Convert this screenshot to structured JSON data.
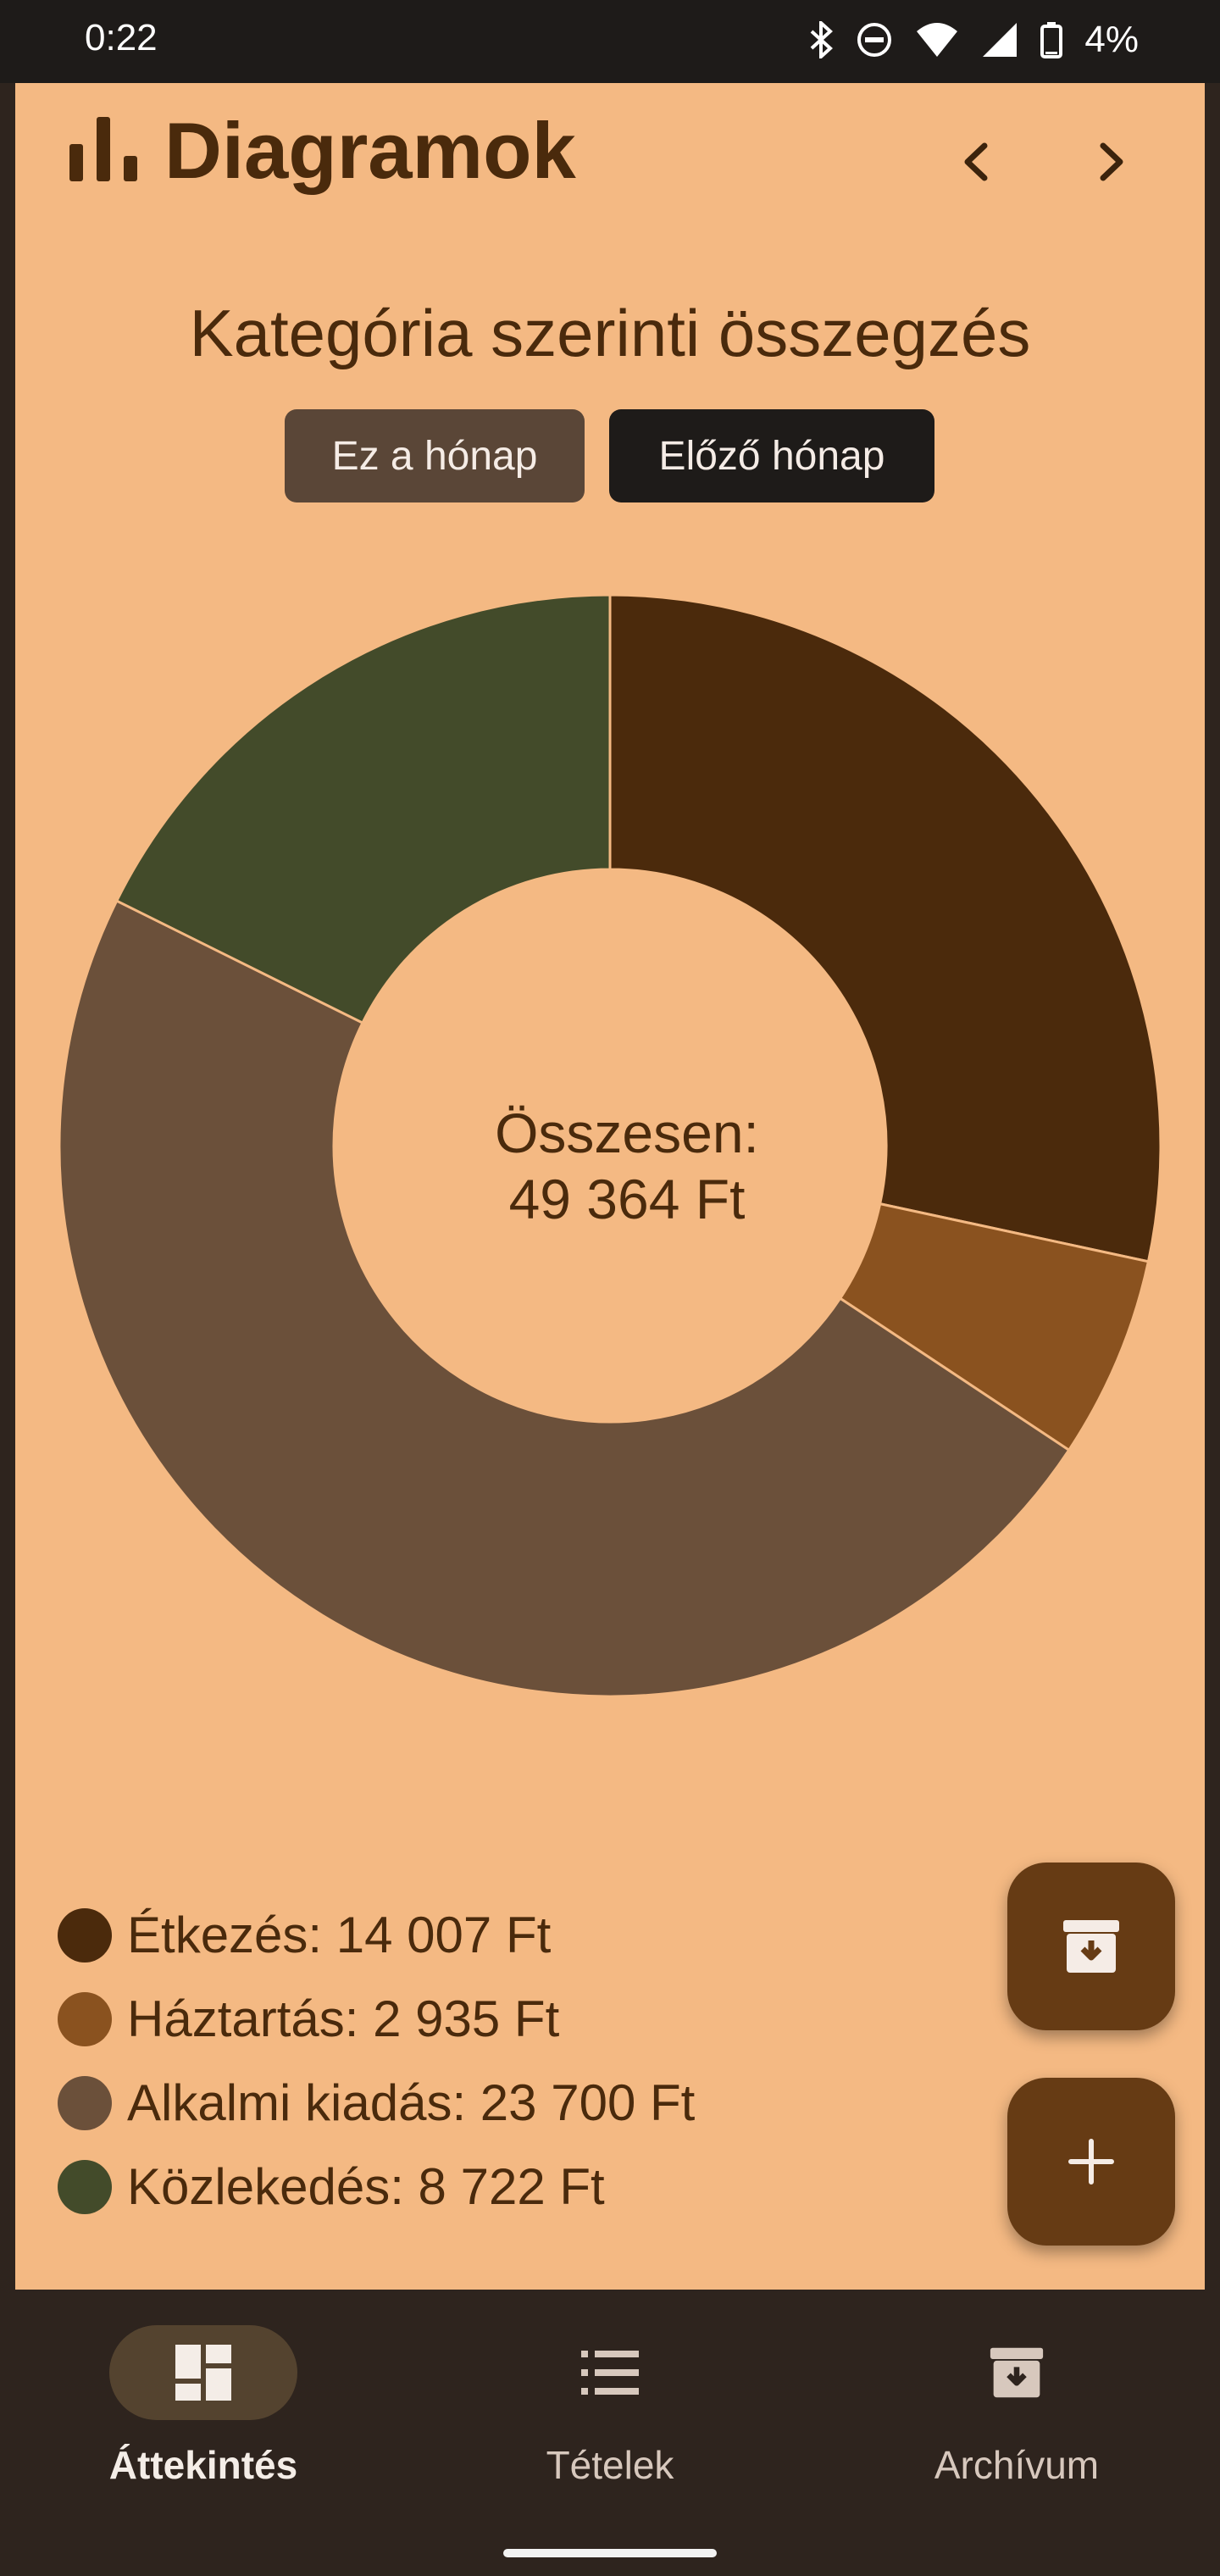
{
  "status": {
    "time": "0:22",
    "battery": "4%"
  },
  "header": {
    "title": "Diagramok"
  },
  "chart_title": "Kategória szerinti összegzés",
  "filters": {
    "this_month": "Ez a hónap",
    "prev_month": "Előző hónap",
    "selected": "prev_month"
  },
  "center": {
    "line1": "Összesen:",
    "line2": "49 364 Ft"
  },
  "legend": [
    {
      "label": "Étkezés: 14 007 Ft",
      "color": "#4b2a0c"
    },
    {
      "label": "Háztartás: 2 935 Ft",
      "color": "#8a521f"
    },
    {
      "label": "Alkalmi kiadás: 23 700 Ft",
      "color": "#6b503a"
    },
    {
      "label": "Közlekedés: 8 722 Ft",
      "color": "#434b2a"
    }
  ],
  "chart_data": {
    "type": "pie",
    "title": "Kategória szerinti összegzés",
    "categories": [
      "Étkezés",
      "Háztartás",
      "Alkalmi kiadás",
      "Közlekedés"
    ],
    "values": [
      14007,
      2935,
      23700,
      8722
    ],
    "colors": [
      "#4b2a0c",
      "#8a521f",
      "#6b503a",
      "#434b2a"
    ],
    "unit": "Ft",
    "total": 49364,
    "donut": true
  },
  "nav": {
    "overview": "Áttekintés",
    "items": "Tételek",
    "archive": "Archívum"
  }
}
